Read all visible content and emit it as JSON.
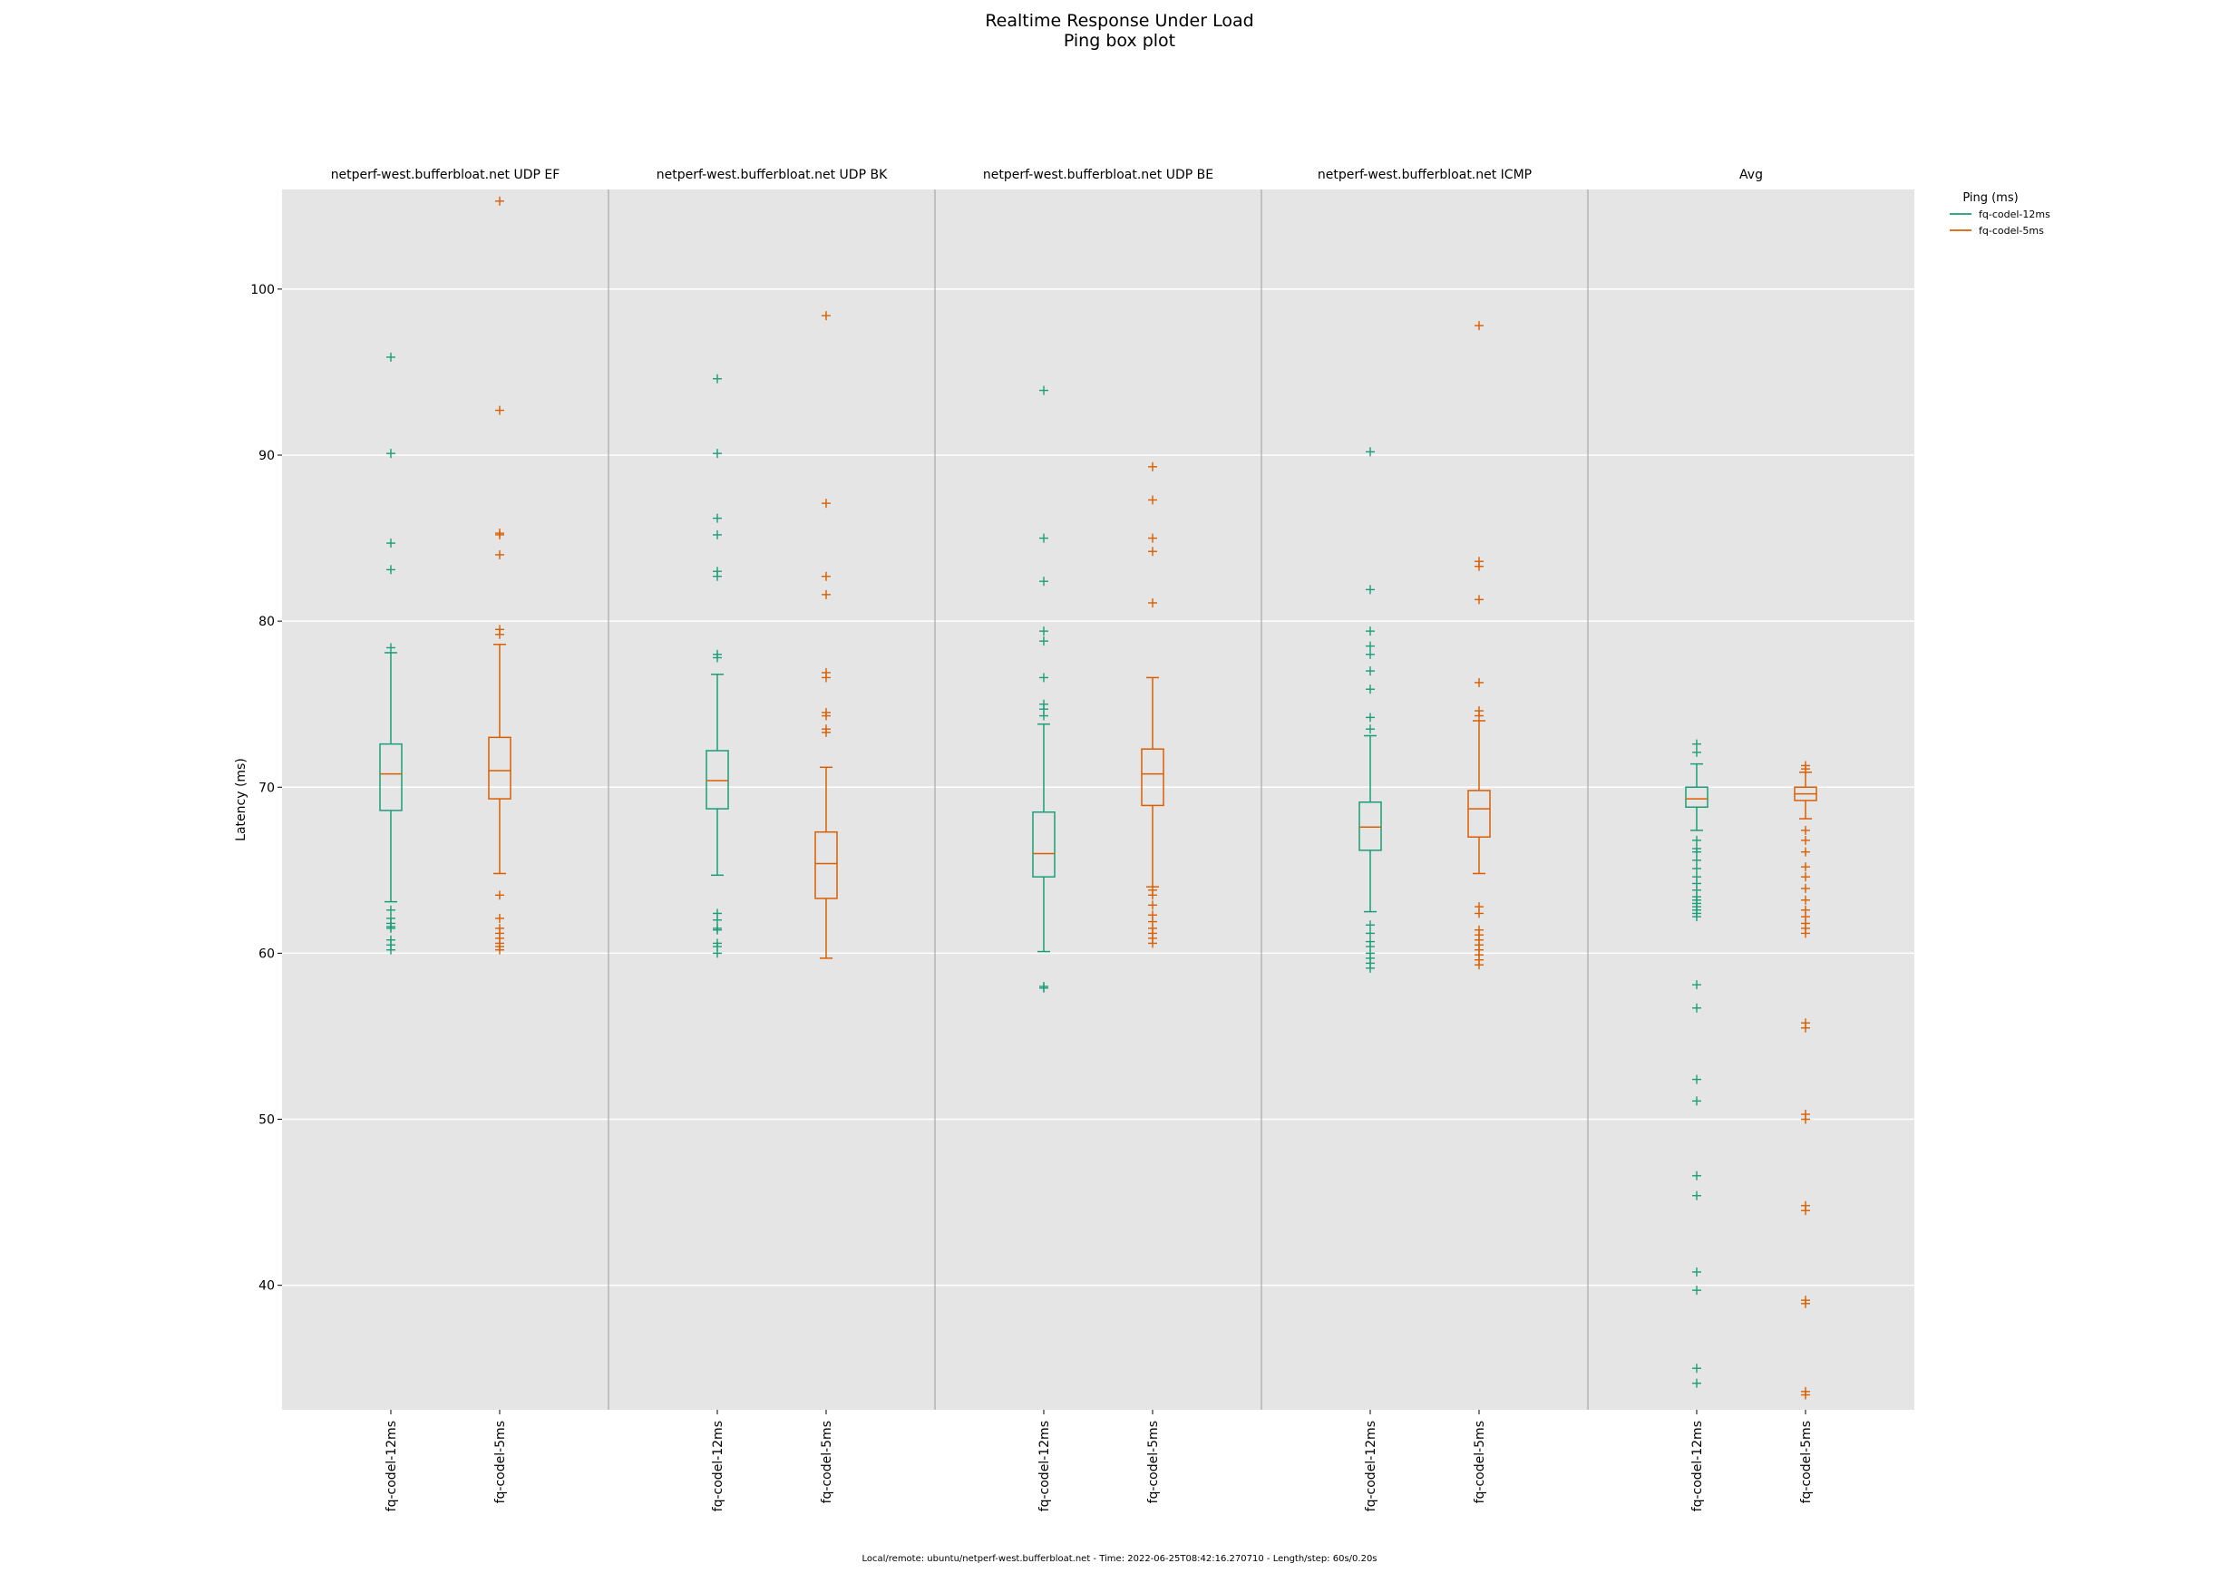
{
  "title_line1": "Realtime Response Under Load",
  "title_line2": "Ping box plot",
  "footer": "Local/remote: ubuntu/netperf-west.bufferbloat.net - Time: 2022-06-25T08:42:16.270710 - Length/step: 60s/0.20s",
  "colors": {
    "fq-codel-12ms": "#1b9e77",
    "fq-codel-5ms": "#d95f02",
    "panel_bg": "#e5e5e5",
    "grid": "#ffffff"
  },
  "chart_data": {
    "type": "boxplot",
    "ylabel": "Latency (ms)",
    "ylim": [
      32.5,
      106
    ],
    "yticks": [
      40,
      50,
      60,
      70,
      80,
      90,
      100
    ],
    "grid": true,
    "legend": {
      "title": "Ping (ms)",
      "placement": "outside-top-right",
      "entries": [
        "fq-codel-12ms",
        "fq-codel-5ms"
      ]
    },
    "panels": [
      {
        "title": "netperf-west.bufferbloat.net UDP EF",
        "boxes": [
          {
            "series": "fq-codel-12ms",
            "whisker_low": 63.1,
            "q1": 68.6,
            "median": 70.8,
            "q3": 72.6,
            "whisker_high": 78.1,
            "outliers": [
              95.9,
              90.1,
              84.7,
              83.1,
              78.4,
              62.6,
              62.1,
              61.8,
              61.6,
              61.5,
              60.8,
              60.5,
              60.2
            ]
          },
          {
            "series": "fq-codel-5ms",
            "whisker_low": 64.8,
            "q1": 69.3,
            "median": 71.0,
            "q3": 73.0,
            "whisker_high": 78.6,
            "outliers": [
              105.3,
              92.7,
              85.3,
              85.2,
              84.0,
              79.5,
              79.2,
              63.5,
              62.1,
              61.5,
              61.2,
              60.9,
              60.6,
              60.4,
              60.2
            ]
          }
        ]
      },
      {
        "title": "netperf-west.bufferbloat.net UDP BK",
        "boxes": [
          {
            "series": "fq-codel-12ms",
            "whisker_low": 64.7,
            "q1": 68.7,
            "median": 70.4,
            "q3": 72.2,
            "whisker_high": 76.8,
            "outliers": [
              94.6,
              90.1,
              86.2,
              85.2,
              83.0,
              82.7,
              78.0,
              77.8,
              62.4,
              62.0,
              61.5,
              61.4,
              60.6,
              60.4,
              60.0
            ]
          },
          {
            "series": "fq-codel-5ms",
            "whisker_low": 59.7,
            "q1": 63.3,
            "median": 65.4,
            "q3": 67.3,
            "whisker_high": 71.2,
            "outliers": [
              98.4,
              87.1,
              82.7,
              81.6,
              76.9,
              76.6,
              74.5,
              74.3,
              73.5,
              73.3
            ]
          }
        ]
      },
      {
        "title": "netperf-west.bufferbloat.net UDP BE",
        "boxes": [
          {
            "series": "fq-codel-12ms",
            "whisker_low": 60.1,
            "q1": 64.6,
            "median": 66.0,
            "q3": 68.5,
            "whisker_high": 73.8,
            "outliers": [
              93.9,
              85.0,
              82.4,
              79.4,
              78.8,
              76.6,
              75.0,
              74.7,
              74.3,
              58.0,
              57.9
            ]
          },
          {
            "series": "fq-codel-5ms",
            "whisker_low": 64.0,
            "q1": 68.9,
            "median": 70.8,
            "q3": 72.3,
            "whisker_high": 76.6,
            "outliers": [
              89.3,
              87.3,
              85.0,
              84.2,
              81.1,
              63.8,
              63.5,
              62.9,
              62.3,
              61.9,
              61.5,
              61.2,
              60.9,
              60.6
            ]
          }
        ]
      },
      {
        "title": "netperf-west.bufferbloat.net ICMP",
        "boxes": [
          {
            "series": "fq-codel-12ms",
            "whisker_low": 62.5,
            "q1": 66.2,
            "median": 67.6,
            "q3": 69.1,
            "whisker_high": 73.1,
            "outliers": [
              90.2,
              81.9,
              79.4,
              78.5,
              78.0,
              77.0,
              75.9,
              74.2,
              73.5,
              61.7,
              61.2,
              60.7,
              60.4,
              60.0,
              59.7,
              59.4,
              59.1
            ]
          },
          {
            "series": "fq-codel-5ms",
            "whisker_low": 64.8,
            "q1": 67.0,
            "median": 68.7,
            "q3": 69.8,
            "whisker_high": 74.0,
            "outliers": [
              97.8,
              83.6,
              83.3,
              81.3,
              76.3,
              74.6,
              74.3,
              62.8,
              62.4,
              61.4,
              61.1,
              60.8,
              60.5,
              60.2,
              59.9,
              59.6,
              59.3
            ]
          }
        ]
      },
      {
        "title": "Avg",
        "boxes": [
          {
            "series": "fq-codel-12ms",
            "whisker_low": 67.4,
            "q1": 68.8,
            "median": 69.3,
            "q3": 70.0,
            "whisker_high": 71.4,
            "outliers": [
              72.6,
              72.1,
              66.8,
              66.3,
              66.1,
              65.6,
              65.1,
              64.6,
              64.2,
              63.8,
              63.4,
              63.2,
              63.0,
              62.8,
              62.6,
              62.4,
              62.2,
              58.1,
              56.7,
              52.4,
              51.1,
              46.6,
              45.4,
              40.8,
              39.7,
              35.0,
              34.1
            ]
          },
          {
            "series": "fq-codel-5ms",
            "whisker_low": 68.1,
            "q1": 69.2,
            "median": 69.6,
            "q3": 70.0,
            "whisker_high": 70.9,
            "outliers": [
              71.3,
              71.1,
              67.4,
              66.8,
              66.1,
              65.2,
              64.6,
              63.9,
              63.2,
              62.6,
              62.2,
              61.8,
              61.5,
              61.2,
              55.8,
              55.5,
              50.3,
              50.0,
              44.8,
              44.5,
              39.1,
              38.9,
              33.6,
              33.4
            ]
          }
        ]
      }
    ]
  }
}
